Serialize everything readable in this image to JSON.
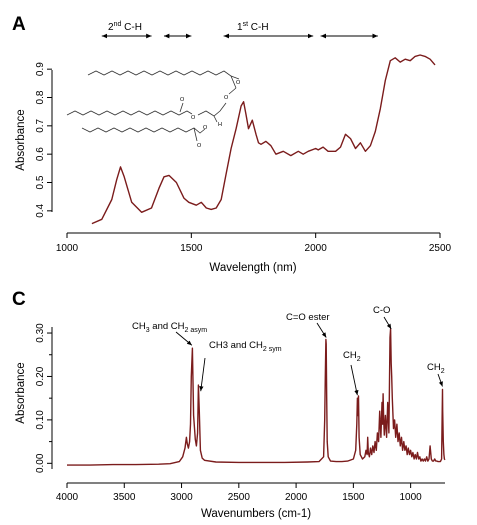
{
  "chart_data": [
    {
      "panel_label": "A",
      "type": "line",
      "xlabel": "Wavelength (nm)",
      "ylabel": "Absorbance",
      "xlim": [
        1000,
        2500
      ],
      "ylim": [
        0.35,
        0.95
      ],
      "xticks": [
        "1000",
        "1500",
        "2000",
        "2500"
      ],
      "yticks": [
        "0.4",
        "0.5",
        "0.6",
        "0.7",
        "0.8",
        "0.9"
      ],
      "line_color": "#7b1c1c",
      "grid": false,
      "series": [
        {
          "x": [
            1100,
            1140,
            1180,
            1200,
            1215,
            1230,
            1260,
            1300,
            1340,
            1370,
            1390,
            1410,
            1440,
            1470,
            1490,
            1520,
            1540,
            1560,
            1580,
            1600,
            1620,
            1640,
            1660,
            1680,
            1700,
            1710,
            1720,
            1730,
            1745,
            1760,
            1770,
            1780,
            1800,
            1820,
            1840,
            1870,
            1900,
            1930,
            1950,
            1970,
            2000,
            2010,
            2030,
            2050,
            2080,
            2100,
            2120,
            2140,
            2160,
            2180,
            2200,
            2220,
            2240,
            2260,
            2280,
            2300,
            2320,
            2340,
            2360,
            2380,
            2400,
            2420,
            2440,
            2460,
            2480
          ],
          "values": [
            0.355,
            0.37,
            0.44,
            0.51,
            0.555,
            0.52,
            0.43,
            0.395,
            0.41,
            0.48,
            0.52,
            0.525,
            0.5,
            0.445,
            0.43,
            0.42,
            0.43,
            0.41,
            0.405,
            0.41,
            0.44,
            0.53,
            0.62,
            0.69,
            0.77,
            0.785,
            0.74,
            0.69,
            0.72,
            0.67,
            0.64,
            0.635,
            0.645,
            0.63,
            0.6,
            0.61,
            0.595,
            0.61,
            0.6,
            0.61,
            0.62,
            0.615,
            0.625,
            0.61,
            0.61,
            0.625,
            0.67,
            0.655,
            0.62,
            0.64,
            0.61,
            0.63,
            0.68,
            0.76,
            0.86,
            0.93,
            0.94,
            0.925,
            0.935,
            0.93,
            0.945,
            0.95,
            0.945,
            0.935,
            0.915
          ]
        }
      ],
      "annotations": [
        {
          "base": "2",
          "sup": "nd",
          "rest": " C-H"
        },
        {
          "base": "1",
          "sup": "st",
          "rest": " C-H"
        }
      ],
      "arrow_ranges_nm": [
        [
          1140,
          1340
        ],
        [
          1390,
          1500
        ],
        [
          1630,
          1990
        ],
        [
          2020,
          2250
        ]
      ]
    },
    {
      "panel_label": "C",
      "type": "line",
      "xlabel": "Wavenumbers (cm-1)",
      "ylabel": "Absorbance",
      "xlim": [
        4000,
        700
      ],
      "ylim": [
        -0.02,
        0.33
      ],
      "xticks": [
        "4000",
        "3500",
        "3000",
        "2500",
        "2000",
        "1500",
        "1000"
      ],
      "yticks": [
        "0.00",
        "0.10",
        "0.20",
        "0.30"
      ],
      "minor_yticks": [
        "0.05",
        "0.15",
        "0.25"
      ],
      "line_color": "#7b1c1c",
      "grid": false,
      "series": [
        {
          "x": [
            4000,
            3800,
            3600,
            3400,
            3200,
            3100,
            3020,
            2990,
            2970,
            2958,
            2950,
            2940,
            2930,
            2922,
            2915,
            2905,
            2895,
            2880,
            2870,
            2860,
            2853,
            2845,
            2835,
            2820,
            2800,
            2700,
            2500,
            2300,
            2100,
            1900,
            1800,
            1760,
            1750,
            1745,
            1740,
            1737,
            1733,
            1728,
            1720,
            1700,
            1650,
            1600,
            1550,
            1500,
            1480,
            1470,
            1465,
            1460,
            1455,
            1450,
            1440,
            1420,
            1400,
            1390,
            1380,
            1375,
            1370,
            1360,
            1350,
            1340,
            1330,
            1320,
            1310,
            1300,
            1290,
            1280,
            1270,
            1260,
            1250,
            1245,
            1240,
            1235,
            1230,
            1220,
            1210,
            1200,
            1190,
            1180,
            1175,
            1170,
            1165,
            1160,
            1150,
            1140,
            1130,
            1120,
            1110,
            1100,
            1090,
            1080,
            1070,
            1060,
            1050,
            1040,
            1030,
            1020,
            1010,
            1000,
            990,
            980,
            970,
            960,
            950,
            940,
            930,
            920,
            910,
            900,
            890,
            880,
            870,
            860,
            850,
            840,
            830,
            820,
            810,
            800,
            790,
            780,
            770,
            760,
            750,
            740,
            730,
            725,
            722,
            720,
            715,
            710,
            705,
            700
          ],
          "values": [
            -0.004,
            -0.004,
            -0.003,
            -0.003,
            -0.002,
            -0.001,
            0.004,
            0.015,
            0.035,
            0.06,
            0.045,
            0.035,
            0.05,
            0.09,
            0.2,
            0.265,
            0.11,
            0.055,
            0.04,
            0.07,
            0.18,
            0.12,
            0.03,
            0.012,
            0.007,
            0.003,
            0.002,
            0.002,
            0.002,
            0.003,
            0.004,
            0.015,
            0.1,
            0.2,
            0.285,
            0.275,
            0.15,
            0.05,
            0.015,
            0.005,
            0.004,
            0.004,
            0.005,
            0.01,
            0.03,
            0.09,
            0.15,
            0.11,
            0.155,
            0.06,
            0.02,
            0.01,
            0.015,
            0.03,
            0.02,
            0.06,
            0.025,
            0.015,
            0.035,
            0.02,
            0.04,
            0.025,
            0.05,
            0.03,
            0.07,
            0.05,
            0.12,
            0.06,
            0.14,
            0.09,
            0.16,
            0.1,
            0.065,
            0.11,
            0.06,
            0.14,
            0.07,
            0.29,
            0.31,
            0.23,
            0.2,
            0.15,
            0.08,
            0.1,
            0.06,
            0.09,
            0.05,
            0.07,
            0.04,
            0.06,
            0.03,
            0.05,
            0.03,
            0.04,
            0.02,
            0.035,
            0.02,
            0.03,
            0.015,
            0.025,
            0.01,
            0.02,
            0.01,
            0.025,
            0.01,
            0.015,
            0.005,
            0.01,
            0.005,
            0.01,
            0.005,
            0.015,
            0.005,
            0.01,
            0.04,
            0.01,
            0.005,
            0.005,
            0.01,
            0.005,
            0.005,
            0.004,
            0.004,
            0.004,
            0.01,
            0.1,
            0.17,
            0.12,
            0.05,
            0.02,
            0.01,
            0.008
          ]
        }
      ],
      "annotations": [
        {
          "id": "ch3-ch2-asym",
          "parts": [
            "CH",
            "3",
            " and CH",
            "2 asym"
          ],
          "peak_x": 2910,
          "peak_y": 0.265
        },
        {
          "id": "ch3-ch2-sym",
          "parts": [
            "CH3 and CH",
            "2 sym"
          ],
          "peak_x": 2850,
          "peak_y": 0.18
        },
        {
          "id": "c-o-ester",
          "text": "C=O ester",
          "peak_x": 1737,
          "peak_y": 0.285
        },
        {
          "id": "ch2-1465",
          "parts": [
            "CH",
            "2"
          ],
          "peak_x": 1465,
          "peak_y": 0.15
        },
        {
          "id": "c-o",
          "text": "C-O",
          "peak_x": 1170,
          "peak_y": 0.305
        },
        {
          "id": "ch2-720",
          "parts": [
            "CH",
            "2"
          ],
          "peak_x": 722,
          "peak_y": 0.17
        }
      ]
    }
  ]
}
